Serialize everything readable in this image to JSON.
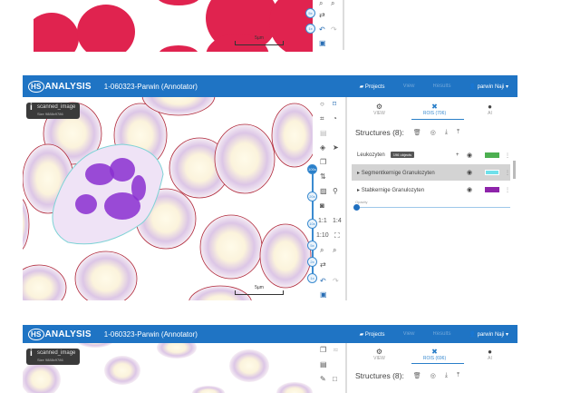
{
  "app": {
    "logo": "HSANALYSIS",
    "logo_badge": "HS",
    "logo_text": "ANALYSIS",
    "title": "1-060323-Parwin (Annotator)",
    "nav": {
      "projects": "Projects",
      "view": "View",
      "results": "Results",
      "user": "parwin Naji"
    }
  },
  "viewer": {
    "info_title": "scanned_image",
    "info_size": "Size 9888x9786",
    "scale_label": "5µm",
    "zoom_levels": [
      "100x",
      "20x",
      "10x",
      "5x",
      "2x",
      "1x"
    ],
    "active_zoom": "100x",
    "ratio_labels": [
      "1:1",
      "1:4",
      "1:10"
    ]
  },
  "panel": {
    "tabs": [
      {
        "label": "VIEW",
        "icon": "gear-icon"
      },
      {
        "label": "ROIS (706)",
        "icon": "rois-icon"
      },
      {
        "label": "AI",
        "icon": "brain-icon"
      }
    ],
    "tabs_bottom": [
      {
        "label": "VIEW"
      },
      {
        "label": "ROIS (696)"
      },
      {
        "label": "AI"
      }
    ],
    "structures_label": "Structures (8):",
    "structures": [
      {
        "name": "Leukozyten",
        "tooltip": "196 objects",
        "color": "#4caf50"
      },
      {
        "name": "Segmentkernige Granulozyten",
        "color": "#6fe0ea",
        "selected": true
      },
      {
        "name": "Stabkernige Granulozyten",
        "color": "#8e24aa"
      }
    ],
    "opacity_label": "Opacity",
    "opacity": 0
  },
  "colors": {
    "header": "#1f74c4",
    "rbc_fill_top": "#e0234f",
    "cell_outline": "#b0283a",
    "wbc_outline": "#7fd3d6"
  }
}
